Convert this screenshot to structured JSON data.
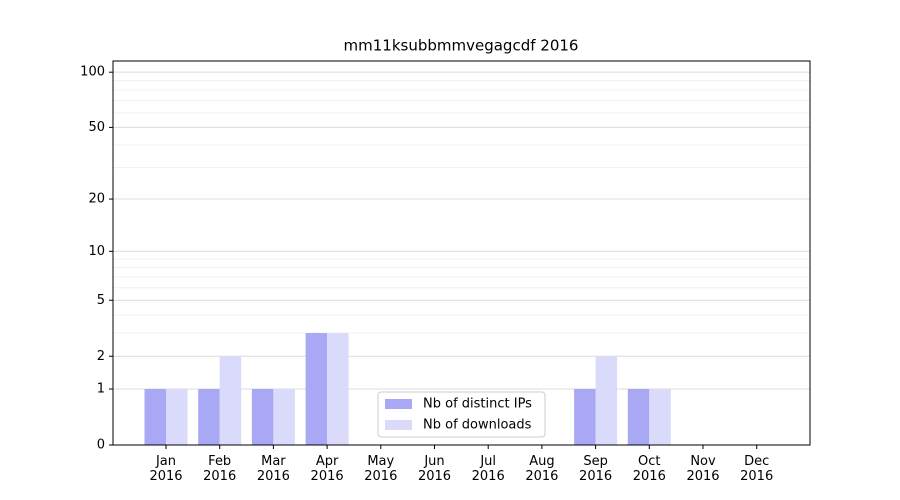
{
  "chart_data": {
    "type": "bar",
    "title": "mm11ksubbmmvegagcdf 2016",
    "categories": [
      "Jan\n2016",
      "Feb\n2016",
      "Mar\n2016",
      "Apr\n2016",
      "May\n2016",
      "Jun\n2016",
      "Jul\n2016",
      "Aug\n2016",
      "Sep\n2016",
      "Oct\n2016",
      "Nov\n2016",
      "Dec\n2016"
    ],
    "series": [
      {
        "name": "Nb of distinct IPs",
        "color": "#a8a8f5",
        "values": [
          1,
          1,
          1,
          3,
          0,
          0,
          0,
          0,
          1,
          1,
          0,
          0
        ]
      },
      {
        "name": "Nb of downloads",
        "color": "#dadafa",
        "values": [
          1,
          2,
          1,
          3,
          0,
          0,
          0,
          0,
          2,
          1,
          0,
          0
        ]
      }
    ],
    "y_scale": "log1p",
    "ylim": [
      0,
      115
    ],
    "yticks": [
      0,
      1,
      2,
      5,
      10,
      20,
      50,
      100
    ],
    "minor_yticks": [
      3,
      4,
      6,
      7,
      8,
      9,
      30,
      40,
      60,
      70,
      80,
      90
    ],
    "grid": true,
    "legend": "lower center"
  }
}
